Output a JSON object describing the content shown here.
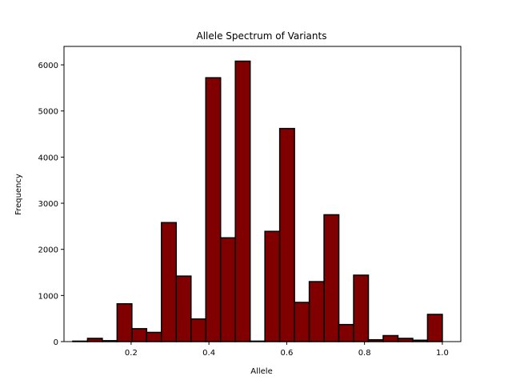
{
  "chart_data": {
    "type": "bar",
    "title": "Allele Spectrum of Variants",
    "xlabel": "Allele",
    "ylabel": "Frequency",
    "xlim": [
      0.0275,
      1.0475
    ],
    "ylim": [
      0,
      6400
    ],
    "x_ticks": [
      0.2,
      0.4,
      0.6,
      0.8,
      1.0
    ],
    "x_tick_labels": [
      "0.2",
      "0.4",
      "0.6",
      "0.8",
      "1.0"
    ],
    "y_ticks": [
      0,
      1000,
      2000,
      3000,
      4000,
      5000,
      6000
    ],
    "y_tick_labels": [
      "0",
      "1000",
      "2000",
      "3000",
      "4000",
      "5000",
      "6000"
    ],
    "bin_edges": [
      0.05,
      0.088,
      0.126,
      0.164,
      0.202,
      0.24,
      0.278,
      0.316,
      0.354,
      0.392,
      0.43,
      0.468,
      0.506,
      0.544,
      0.582,
      0.62,
      0.658,
      0.696,
      0.734,
      0.772,
      0.81,
      0.848,
      0.886,
      0.924,
      0.962,
      1.0
    ],
    "values": [
      10,
      70,
      20,
      820,
      280,
      200,
      2580,
      1420,
      490,
      5720,
      2250,
      6080,
      10,
      2390,
      4620,
      850,
      1300,
      2750,
      370,
      1440,
      40,
      130,
      70,
      30,
      590
    ],
    "bar_color": "#800000",
    "edge_color": "#000000",
    "grid": false
  }
}
